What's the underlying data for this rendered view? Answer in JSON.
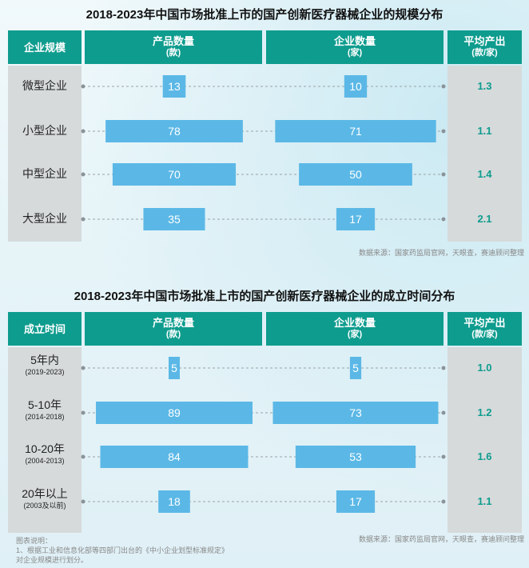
{
  "chart_data": [
    {
      "type": "bar",
      "title": "2018-2023年中国市场批准上市的国产创新医疗器械企业的规模分布",
      "header": {
        "category": "企业规模",
        "products_line1": "产品数量",
        "products_line2": "(款)",
        "enterprises_line1": "企业数量",
        "enterprises_line2": "(家)",
        "average_line1": "平均产出",
        "average_line2": "(款/家)"
      },
      "categories": [
        "微型企业",
        "小型企业",
        "中型企业",
        "大型企业"
      ],
      "category_sub": [
        "",
        "",
        "",
        ""
      ],
      "series": [
        {
          "name": "产品数量",
          "values": [
            13,
            78,
            70,
            35
          ]
        },
        {
          "name": "企业数量",
          "values": [
            10,
            71,
            50,
            17
          ]
        }
      ],
      "averages": [
        "1.3",
        "1.1",
        "1.4",
        "2.1"
      ],
      "source": "数据来源：国家药监局官网，天眼查，赛迪顾问整理"
    },
    {
      "type": "bar",
      "title": "2018-2023年中国市场批准上市的国产创新医疗器械企业的成立时间分布",
      "header": {
        "category": "成立时间",
        "products_line1": "产品数量",
        "products_line2": "(款)",
        "enterprises_line1": "企业数量",
        "enterprises_line2": "(家)",
        "average_line1": "平均产出",
        "average_line2": "(款/家)"
      },
      "categories": [
        "5年内",
        "5-10年",
        "10-20年",
        "20年以上"
      ],
      "category_sub": [
        "(2019-2023)",
        "(2014-2018)",
        "(2004-2013)",
        "(2003及以前)"
      ],
      "series": [
        {
          "name": "产品数量",
          "values": [
            5,
            89,
            84,
            18
          ]
        },
        {
          "name": "企业数量",
          "values": [
            5,
            73,
            53,
            17
          ]
        }
      ],
      "averages": [
        "1.0",
        "1.2",
        "1.6",
        "1.1"
      ],
      "source": "数据来源：国家药监局官网，天眼查，赛迪顾问整理"
    }
  ],
  "notes": {
    "title": "图表说明：",
    "line1": "1、根据工业和信息化部等四部门出台的《中小企业划型标准规定》",
    "line2": "对企业规模进行划分。"
  },
  "colors": {
    "accent": "#0e9c8e",
    "bar": "#5bb8e6",
    "gray": "#d6dadb"
  }
}
